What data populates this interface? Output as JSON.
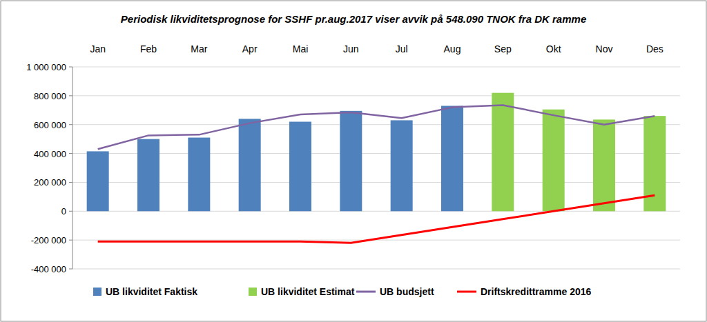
{
  "chart_data": {
    "type": "bar",
    "title": "Periodisk likviditetsprognose for SSHF pr.aug.2017 viser avvik på 548.090 TNOK fra DK ramme",
    "categories": [
      "Jan",
      "Feb",
      "Mar",
      "Apr",
      "Mai",
      "Jun",
      "Jul",
      "Aug",
      "Sep",
      "Okt",
      "Nov",
      "Des"
    ],
    "series": [
      {
        "name": "UB likviditet Faktisk",
        "type": "bar",
        "color": "#4f81bd",
        "values": [
          415000,
          500000,
          510000,
          640000,
          620000,
          695000,
          630000,
          730000,
          null,
          null,
          null,
          null
        ]
      },
      {
        "name": "UB likviditet Estimat",
        "type": "bar",
        "color": "#92d050",
        "values": [
          null,
          null,
          null,
          null,
          null,
          null,
          null,
          null,
          820000,
          705000,
          635000,
          660000
        ]
      },
      {
        "name": "UB budsjett",
        "type": "line",
        "color": "#8064a2",
        "values": [
          430000,
          525000,
          530000,
          610000,
          670000,
          685000,
          645000,
          720000,
          735000,
          665000,
          600000,
          660000
        ]
      },
      {
        "name": "Driftskredittramme 2016",
        "type": "line",
        "color": "#ff0000",
        "values": [
          -210000,
          -210000,
          -210000,
          -210000,
          -210000,
          -220000,
          -165000,
          -110000,
          -55000,
          0,
          55000,
          110000
        ]
      }
    ],
    "ylim": [
      -400000,
      1000000
    ],
    "yticks": [
      {
        "value": -400000,
        "label": "-400 000"
      },
      {
        "value": -200000,
        "label": "-200 000"
      },
      0,
      {
        "value": 200000,
        "label": "200 000"
      },
      {
        "value": 400000,
        "label": "400 000"
      },
      {
        "value": 600000,
        "label": "600 000"
      },
      {
        "value": 800000,
        "label": "800 000"
      },
      {
        "value": 1000000,
        "label": "1 000 000"
      }
    ],
    "grid": true,
    "legend": "bottom"
  }
}
